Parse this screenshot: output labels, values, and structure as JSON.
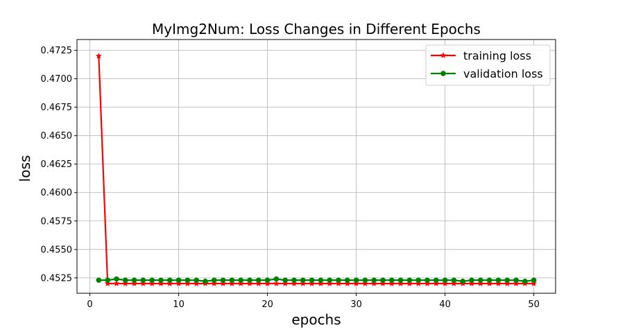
{
  "chart_data": {
    "type": "line",
    "title": "MyImg2Num: Loss Changes in Different Epochs",
    "xlabel": "epochs",
    "ylabel": "loss",
    "xlim": [
      -1.45,
      52.45
    ],
    "ylim": [
      0.45115,
      0.47345
    ],
    "xticks": [
      0,
      10,
      20,
      30,
      40,
      50
    ],
    "yticks": [
      0.4525,
      0.455,
      0.4575,
      0.46,
      0.4625,
      0.465,
      0.4675,
      0.47,
      0.4725
    ],
    "ytick_labels": [
      "0.4525",
      "0.4550",
      "0.4575",
      "0.4600",
      "0.4625",
      "0.4650",
      "0.4675",
      "0.4700",
      "0.4725"
    ],
    "xtick_labels": [
      "0",
      "10",
      "20",
      "30",
      "40",
      "50"
    ],
    "grid": true,
    "legend_position": "top-right",
    "x": [
      1,
      2,
      3,
      4,
      5,
      6,
      7,
      8,
      9,
      10,
      11,
      12,
      13,
      14,
      15,
      16,
      17,
      18,
      19,
      20,
      21,
      22,
      23,
      24,
      25,
      26,
      27,
      28,
      29,
      30,
      31,
      32,
      33,
      34,
      35,
      36,
      37,
      38,
      39,
      40,
      41,
      42,
      43,
      44,
      45,
      46,
      47,
      48,
      49,
      50
    ],
    "series": [
      {
        "name": "training loss",
        "color": "#ff0000",
        "marker": "star",
        "values": [
          0.472,
          0.452,
          0.452,
          0.452,
          0.452,
          0.452,
          0.452,
          0.452,
          0.452,
          0.452,
          0.452,
          0.452,
          0.452,
          0.452,
          0.452,
          0.452,
          0.452,
          0.452,
          0.452,
          0.452,
          0.452,
          0.452,
          0.452,
          0.452,
          0.452,
          0.452,
          0.452,
          0.452,
          0.452,
          0.452,
          0.452,
          0.452,
          0.452,
          0.452,
          0.452,
          0.452,
          0.452,
          0.452,
          0.452,
          0.452,
          0.452,
          0.452,
          0.452,
          0.452,
          0.452,
          0.452,
          0.452,
          0.452,
          0.452,
          0.452
        ]
      },
      {
        "name": "validation loss",
        "color": "#008000",
        "marker": "circle",
        "values": [
          0.4523,
          0.4523,
          0.4524,
          0.4523,
          0.4523,
          0.4523,
          0.4523,
          0.4523,
          0.4523,
          0.4523,
          0.4523,
          0.4523,
          0.4522,
          0.4523,
          0.4523,
          0.4523,
          0.4523,
          0.4523,
          0.4523,
          0.4523,
          0.4524,
          0.4523,
          0.4523,
          0.4523,
          0.4523,
          0.4523,
          0.4523,
          0.4523,
          0.4523,
          0.4523,
          0.4523,
          0.4523,
          0.4523,
          0.4523,
          0.4523,
          0.4523,
          0.4523,
          0.4523,
          0.4523,
          0.4523,
          0.4523,
          0.4522,
          0.4523,
          0.4523,
          0.4523,
          0.4523,
          0.4523,
          0.4523,
          0.4522,
          0.4523
        ]
      }
    ]
  }
}
